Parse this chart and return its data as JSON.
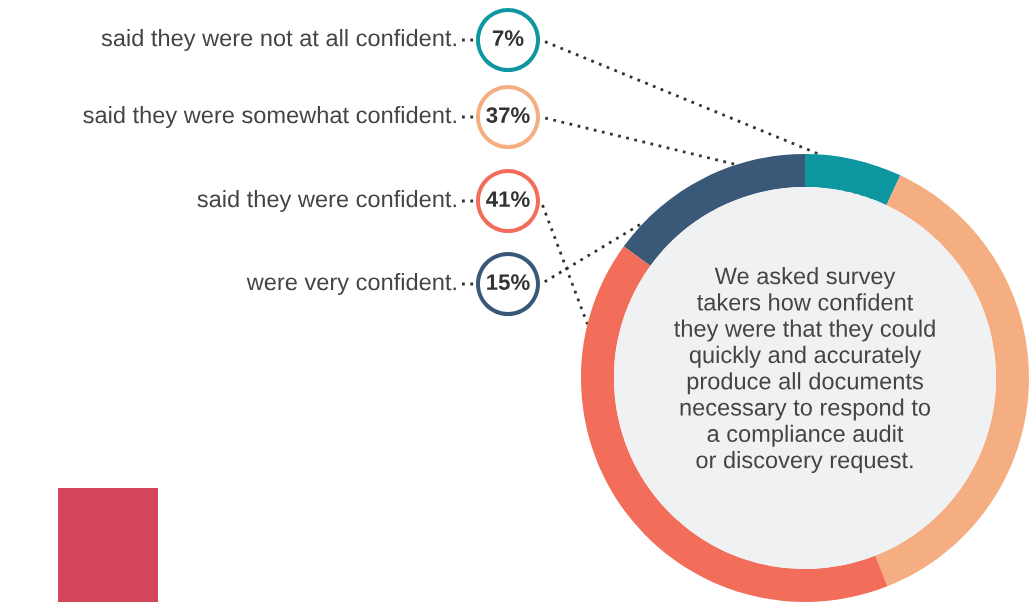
{
  "chart_data": {
    "type": "donut",
    "categories": [
      "said they were not at all confident.",
      "said they were somewhat confident.",
      "said they were confident.",
      "were very confident."
    ],
    "values": [
      7,
      37,
      41,
      15
    ],
    "colors": [
      "#0e97a0",
      "#f5ae82",
      "#f26e5a",
      "#3a5878"
    ],
    "value_labels": [
      "7%",
      "37%",
      "41%",
      "15%"
    ],
    "annotations": [
      "We asked survey\ntakers how confident\nthey were that they could\nquickly and accurately\nproduce all documents\nnecessary to respond to\na compliance audit\nor discovery request."
    ]
  }
}
